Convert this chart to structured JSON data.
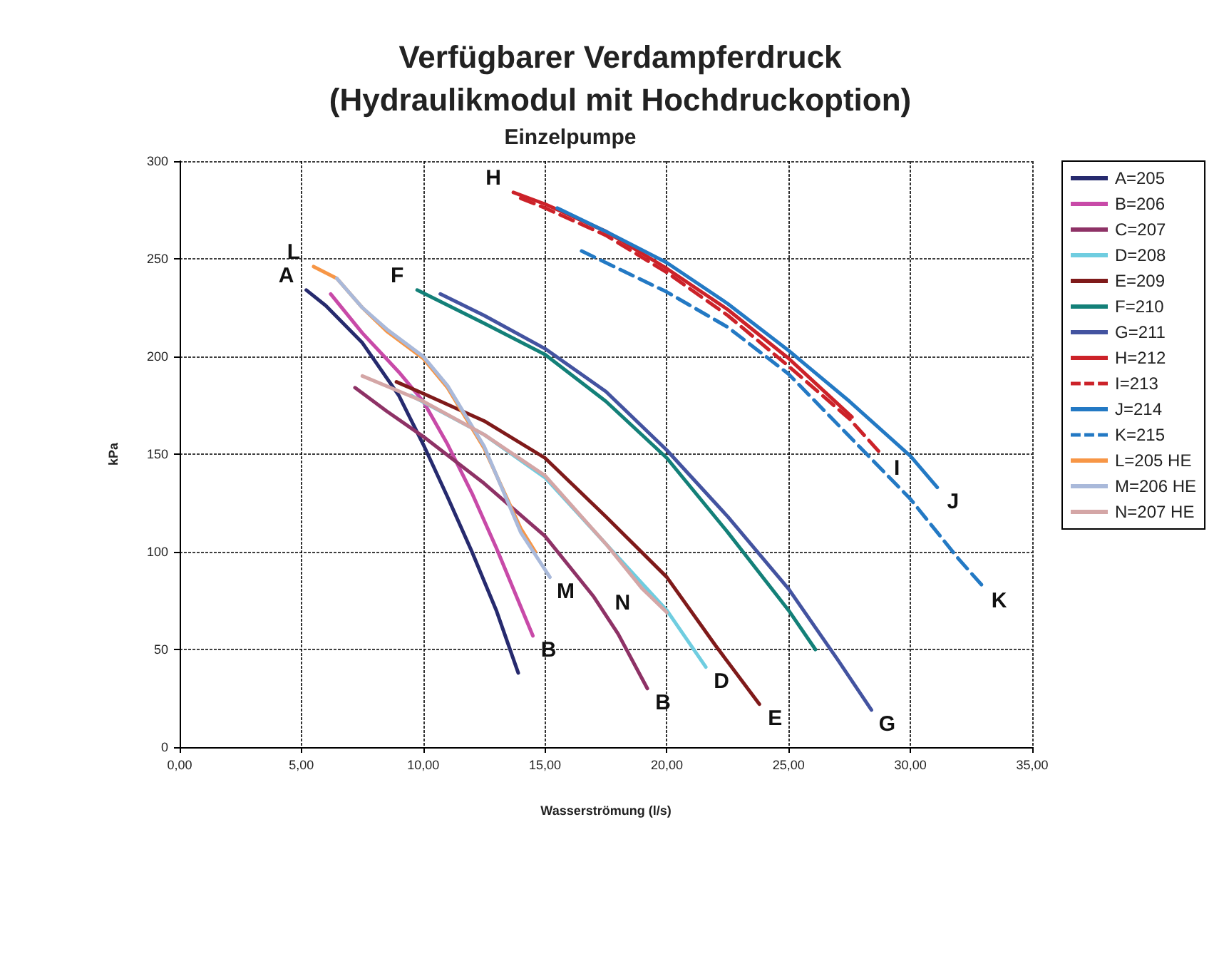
{
  "chart_data": {
    "type": "line",
    "title": "Verfügbarer Verdampferdruck\n(Hydraulikmodul mit Hochdruckoption)",
    "subtitle": "Einzelpumpe",
    "xlabel": "Wasserströmung (l/s)",
    "ylabel": "kPa",
    "xlim": [
      0,
      35
    ],
    "xticks": [
      {
        "value": 0,
        "label": "0,00"
      },
      {
        "value": 5,
        "label": "5,00"
      },
      {
        "value": 10,
        "label": "10,00"
      },
      {
        "value": 15,
        "label": "15,00"
      },
      {
        "value": 20,
        "label": "20,00"
      },
      {
        "value": 25,
        "label": "25,00"
      },
      {
        "value": 30,
        "label": "30,00"
      },
      {
        "value": 35,
        "label": "35,00"
      }
    ],
    "ylim": [
      0,
      300
    ],
    "yticks": [
      0,
      50,
      100,
      150,
      200,
      250,
      300
    ],
    "grid": true,
    "legend": "right",
    "marker": "none",
    "series": [
      {
        "name": "A=205",
        "color": "#262a6e",
        "x": [
          5.2,
          6,
          7.5,
          9,
          10,
          11,
          12,
          13,
          13.9
        ],
        "values": [
          234,
          226,
          207,
          180,
          155,
          128,
          100,
          70,
          38
        ]
      },
      {
        "name": "B=206",
        "color": "#c84aa8",
        "x": [
          6.2,
          7.5,
          9,
          10,
          11,
          12,
          13,
          14,
          14.5
        ],
        "values": [
          232,
          212,
          192,
          177,
          155,
          130,
          102,
          72,
          57
        ]
      },
      {
        "name": "C=207",
        "color": "#8e3266",
        "x": [
          7.2,
          8.5,
          10,
          12.5,
          15,
          17,
          18,
          19.2
        ],
        "values": [
          184,
          172,
          159,
          135,
          108,
          77,
          58,
          30
        ]
      },
      {
        "name": "D=208",
        "color": "#6fcde0",
        "x": [
          9.5,
          12.5,
          15,
          17.5,
          20,
          21.6
        ],
        "values": [
          180,
          160,
          138,
          104,
          70,
          41
        ]
      },
      {
        "name": "E=209",
        "color": "#7f1a1a",
        "x": [
          8.9,
          10,
          12.5,
          15,
          17.5,
          20,
          22,
          23.8
        ],
        "values": [
          187,
          181,
          167,
          148,
          118,
          87,
          52,
          22
        ]
      },
      {
        "name": "F=210",
        "color": "#138078",
        "x": [
          9.75,
          12.5,
          15,
          17.5,
          20,
          22.5,
          25,
          26.1
        ],
        "values": [
          234,
          217,
          201,
          177,
          148,
          110,
          70,
          50
        ]
      },
      {
        "name": "G=211",
        "color": "#4353a0",
        "x": [
          10.7,
          12.5,
          15,
          17.5,
          20,
          22.5,
          25,
          27,
          28.4
        ],
        "values": [
          232,
          221,
          204,
          182,
          152,
          118,
          81,
          45,
          19
        ]
      },
      {
        "name": "H=212",
        "color": "#cc2229",
        "x": [
          13.7,
          15,
          17.5,
          20,
          22.5,
          25,
          27.6
        ],
        "values": [
          284,
          278,
          264,
          245,
          224,
          199,
          169
        ]
      },
      {
        "name": "I=213",
        "color": "#cc2229",
        "line_style": "dashed",
        "x": [
          14,
          15,
          17.5,
          20,
          22.5,
          25,
          27.5,
          28.8
        ],
        "values": [
          281,
          276,
          262,
          243,
          221,
          195,
          168,
          150
        ]
      },
      {
        "name": "J=214",
        "color": "#2379c4",
        "x": [
          15.5,
          17.5,
          20,
          22.5,
          25,
          27.5,
          30,
          31.1
        ],
        "values": [
          276,
          264,
          248,
          227,
          203,
          177,
          149,
          133
        ]
      },
      {
        "name": "K=215",
        "color": "#2379c4",
        "line_style": "dashed",
        "x": [
          16.5,
          20,
          22.5,
          25,
          27.5,
          30,
          32,
          33
        ],
        "values": [
          254,
          233,
          215,
          191,
          159,
          127,
          96,
          82
        ]
      },
      {
        "name": "L=205 HE",
        "color": "#f79646",
        "x": [
          5.5,
          6.45,
          7.5,
          8.5,
          10,
          11,
          12.5,
          14,
          14.6
        ],
        "values": [
          246,
          240,
          225,
          213,
          199,
          184,
          153,
          112,
          100
        ]
      },
      {
        "name": "M=206 HE",
        "color": "#a9b9da",
        "x": [
          6.45,
          7.5,
          8.5,
          10,
          11,
          12.5,
          14,
          15.2
        ],
        "values": [
          240,
          225,
          214,
          200,
          185,
          154,
          110,
          87
        ]
      },
      {
        "name": "N=207 HE",
        "color": "#d4a6a6",
        "x": [
          7.5,
          10,
          12.5,
          15,
          17.5,
          19,
          20
        ],
        "values": [
          190,
          177,
          160,
          139,
          104,
          81,
          69
        ]
      }
    ],
    "annotations": [
      {
        "text": "A",
        "x": 5.2,
        "y": 234
      },
      {
        "text": "L",
        "x": 5.5,
        "y": 246
      },
      {
        "text": "F",
        "x": 9.75,
        "y": 234
      },
      {
        "text": "H",
        "x": 13.7,
        "y": 284
      },
      {
        "text": "B",
        "x": 14.5,
        "y": 57
      },
      {
        "text": "M",
        "x": 15.2,
        "y": 87
      },
      {
        "text": "N",
        "x": 19,
        "y": 81
      },
      {
        "text": "B",
        "x": 19.2,
        "y": 30
      },
      {
        "text": "D",
        "x": 21.6,
        "y": 41
      },
      {
        "text": "E",
        "x": 23.8,
        "y": 22
      },
      {
        "text": "G",
        "x": 28.4,
        "y": 19
      },
      {
        "text": "I",
        "x": 28.8,
        "y": 150
      },
      {
        "text": "J",
        "x": 31.1,
        "y": 133
      },
      {
        "text": "K",
        "x": 33,
        "y": 82
      }
    ]
  }
}
